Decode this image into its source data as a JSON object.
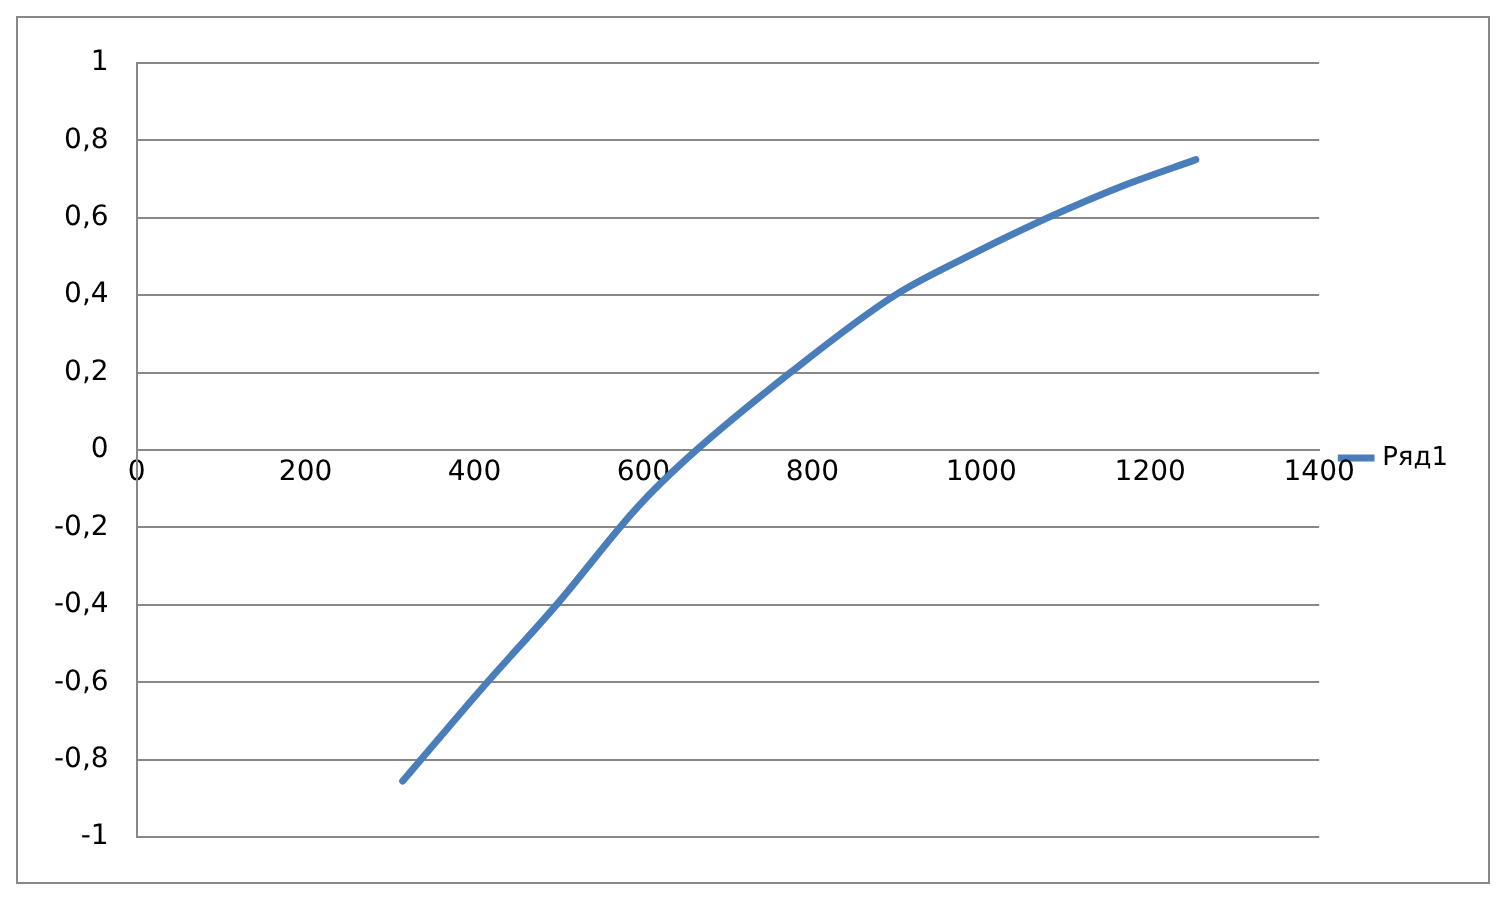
{
  "chart_data": {
    "type": "line",
    "x": [
      315,
      411,
      497,
      592,
      650,
      774,
      898,
      984,
      1079,
      1165,
      1254
    ],
    "series": [
      {
        "name": "Ряд1",
        "color": "#4a7ebb",
        "values": [
          -0.855,
          -0.61,
          -0.4,
          -0.15,
          -0.025,
          0.2,
          0.4,
          0.5,
          0.6,
          0.68,
          0.75
        ]
      }
    ],
    "xlim": [
      0,
      1400
    ],
    "xticks": [
      {
        "value": 0,
        "label": "0"
      },
      {
        "value": 200,
        "label": "200"
      },
      {
        "value": 400,
        "label": "400"
      },
      {
        "value": 600,
        "label": "600"
      },
      {
        "value": 800,
        "label": "800"
      },
      {
        "value": 1000,
        "label": "1000"
      },
      {
        "value": 1200,
        "label": "1200"
      },
      {
        "value": 1400,
        "label": "1400"
      }
    ],
    "ylim": [
      -1,
      1
    ],
    "yticks": [
      {
        "value": -1,
        "label": "-1"
      },
      {
        "value": -0.8,
        "label": "-0,8"
      },
      {
        "value": -0.6,
        "label": "-0,6"
      },
      {
        "value": -0.4,
        "label": "-0,4"
      },
      {
        "value": -0.2,
        "label": "-0,2"
      },
      {
        "value": 0,
        "label": "0"
      },
      {
        "value": 0.2,
        "label": "0,2"
      },
      {
        "value": 0.4,
        "label": "0,4"
      },
      {
        "value": 0.6,
        "label": "0,6"
      },
      {
        "value": 0.8,
        "label": "0,8"
      },
      {
        "value": 1,
        "label": "1"
      }
    ],
    "grid": "y",
    "legend": "right",
    "marker": "none",
    "line_style": "solid"
  }
}
